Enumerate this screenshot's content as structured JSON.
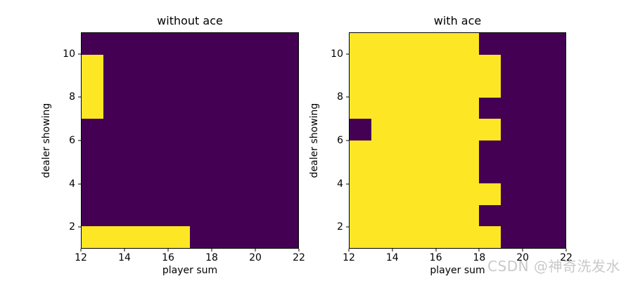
{
  "figure": {
    "background": "#ffffff",
    "watermark_text": "CSDN @神奇洗发水",
    "watermark_color": "#c9c9c9"
  },
  "colors": {
    "map": {
      "0": "#440154",
      "1": "#fde725"
    },
    "spine": "#000000",
    "text": "#000000"
  },
  "chart_data": [
    {
      "type": "heatmap",
      "title": "without ace",
      "xlabel": "player sum",
      "ylabel": "dealer showing",
      "xlim": [
        12,
        22
      ],
      "ylim": [
        1,
        11
      ],
      "xticks": [
        12,
        14,
        16,
        18,
        20,
        22
      ],
      "yticks": [
        2,
        4,
        6,
        8,
        10
      ],
      "x_player_sums": [
        12,
        13,
        14,
        15,
        16,
        17,
        18,
        19,
        20,
        21
      ],
      "y_dealer_showing": [
        1,
        2,
        3,
        4,
        5,
        6,
        7,
        8,
        9,
        10
      ],
      "rows_bottom_to_top": [
        [
          1,
          1,
          1,
          1,
          1,
          0,
          0,
          0,
          0,
          0
        ],
        [
          0,
          0,
          0,
          0,
          0,
          0,
          0,
          0,
          0,
          0
        ],
        [
          0,
          0,
          0,
          0,
          0,
          0,
          0,
          0,
          0,
          0
        ],
        [
          0,
          0,
          0,
          0,
          0,
          0,
          0,
          0,
          0,
          0
        ],
        [
          0,
          0,
          0,
          0,
          0,
          0,
          0,
          0,
          0,
          0
        ],
        [
          0,
          0,
          0,
          0,
          0,
          0,
          0,
          0,
          0,
          0
        ],
        [
          1,
          0,
          0,
          0,
          0,
          0,
          0,
          0,
          0,
          0
        ],
        [
          1,
          0,
          0,
          0,
          0,
          0,
          0,
          0,
          0,
          0
        ],
        [
          1,
          0,
          0,
          0,
          0,
          0,
          0,
          0,
          0,
          0
        ],
        [
          0,
          0,
          0,
          0,
          0,
          0,
          0,
          0,
          0,
          0
        ]
      ]
    },
    {
      "type": "heatmap",
      "title": "with ace",
      "xlabel": "player sum",
      "ylabel": "dealer showing",
      "xlim": [
        12,
        22
      ],
      "ylim": [
        1,
        11
      ],
      "xticks": [
        12,
        14,
        16,
        18,
        20,
        22
      ],
      "yticks": [
        2,
        4,
        6,
        8,
        10
      ],
      "x_player_sums": [
        12,
        13,
        14,
        15,
        16,
        17,
        18,
        19,
        20,
        21
      ],
      "y_dealer_showing": [
        1,
        2,
        3,
        4,
        5,
        6,
        7,
        8,
        9,
        10
      ],
      "rows_bottom_to_top": [
        [
          1,
          1,
          1,
          1,
          1,
          1,
          1,
          0,
          0,
          0
        ],
        [
          1,
          1,
          1,
          1,
          1,
          1,
          0,
          0,
          0,
          0
        ],
        [
          1,
          1,
          1,
          1,
          1,
          1,
          1,
          0,
          0,
          0
        ],
        [
          1,
          1,
          1,
          1,
          1,
          1,
          0,
          0,
          0,
          0
        ],
        [
          1,
          1,
          1,
          1,
          1,
          1,
          0,
          0,
          0,
          0
        ],
        [
          0,
          1,
          1,
          1,
          1,
          1,
          1,
          0,
          0,
          0
        ],
        [
          1,
          1,
          1,
          1,
          1,
          1,
          0,
          0,
          0,
          0
        ],
        [
          1,
          1,
          1,
          1,
          1,
          1,
          1,
          0,
          0,
          0
        ],
        [
          1,
          1,
          1,
          1,
          1,
          1,
          1,
          0,
          0,
          0
        ],
        [
          1,
          1,
          1,
          1,
          1,
          1,
          0,
          0,
          0,
          0
        ]
      ]
    }
  ]
}
